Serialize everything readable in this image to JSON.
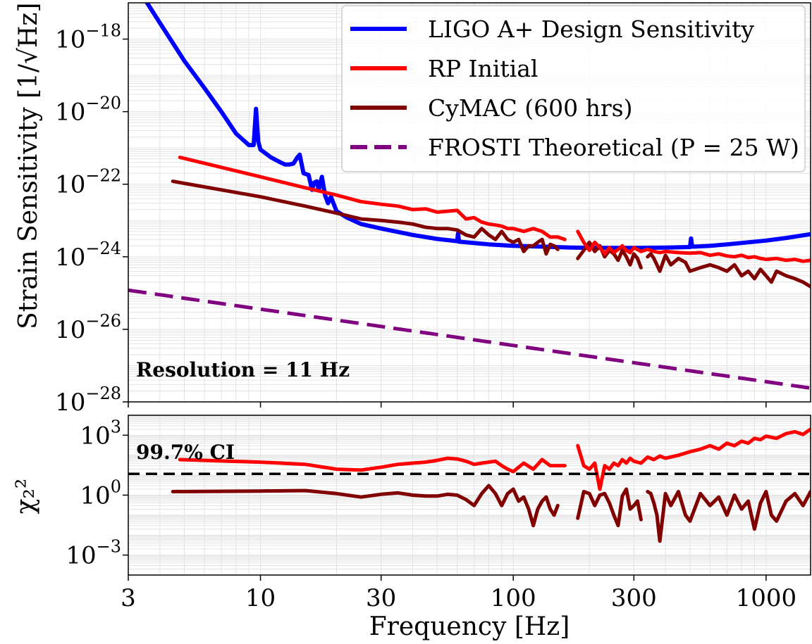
{
  "chart_data": [
    {
      "type": "line",
      "panel": "top",
      "ylabel": "Strain Sensitivity",
      "ylabel_unit": "[1/√Hz]",
      "xscale": "log",
      "yscale": "log",
      "xlim": [
        3,
        1500
      ],
      "ylim": [
        1e-28,
        1e-17
      ],
      "grid": true,
      "legend_placement": "top-right",
      "y_ticks": [
        {
          "value": 1e-18,
          "base": "10",
          "exp": "−18"
        },
        {
          "value": 1e-20,
          "base": "10",
          "exp": "−20"
        },
        {
          "value": 1e-22,
          "base": "10",
          "exp": "−22"
        },
        {
          "value": 1e-24,
          "base": "10",
          "exp": "−24"
        },
        {
          "value": 1e-26,
          "base": "10",
          "exp": "−26"
        },
        {
          "value": 1e-28,
          "base": "10",
          "exp": "−28"
        }
      ],
      "annotation": "Resolution = 11 Hz",
      "series": [
        {
          "name": "LIGO A+ Design Sensitivity",
          "color": "#0000ff",
          "style": "solid",
          "x": [
            3.5,
            4,
            5,
            6,
            7,
            8,
            9,
            9.4,
            9.6,
            9.8,
            10,
            11,
            12,
            12.5,
            13,
            13.5,
            14,
            14.3,
            14.8,
            15.5,
            16,
            16.3,
            16.7,
            17,
            17.5,
            18,
            18.5,
            19,
            20,
            22,
            25,
            30,
            40,
            50,
            60,
            60.5,
            61,
            70,
            80,
            100,
            130,
            170,
            220,
            300,
            400,
            500,
            505,
            510,
            520,
            600,
            700,
            800,
            1000,
            1200,
            1500
          ],
          "y": [
            1.2e-17,
            2.8e-18,
            2.5e-19,
            4.5e-20,
            1e-20,
            2.5e-21,
            1.2e-21,
            1.2e-21,
            1.2e-20,
            1.5e-21,
            9e-22,
            5.5e-22,
            4e-22,
            3.5e-22,
            3.5e-22,
            3.7e-22,
            5.5e-22,
            6.5e-22,
            2e-22,
            1.8e-22,
            7e-23,
            1.1e-22,
            1.2e-22,
            7e-23,
            1.6e-22,
            5e-23,
            3e-23,
            4.5e-23,
            1.8e-23,
            1.2e-23,
            8e-24,
            6e-24,
            4e-24,
            3.1e-24,
            2.7e-24,
            4.5e-24,
            2.6e-24,
            2.4e-24,
            2.2e-24,
            2e-24,
            1.9e-24,
            1.8e-24,
            1.75e-24,
            1.75e-24,
            1.8e-24,
            1.85e-24,
            3.2e-24,
            1.9e-24,
            1.9e-24,
            2e-24,
            2.2e-24,
            2.4e-24,
            2.8e-24,
            3.3e-24,
            4.2e-24
          ]
        },
        {
          "name": "RP Initial",
          "color": "#ff0000",
          "style": "solid",
          "x": [
            4.8,
            10,
            15,
            20,
            25,
            30,
            35,
            40,
            45,
            50,
            55,
            60,
            65,
            70,
            75,
            80,
            85,
            90,
            95,
            100,
            110,
            120,
            130,
            140,
            150,
            160,
            null,
            180,
            190,
            200,
            210,
            220,
            230,
            240,
            250,
            260,
            270,
            280,
            290,
            300,
            320,
            340,
            360,
            380,
            400,
            450,
            500,
            550,
            600,
            650,
            700,
            750,
            800,
            850,
            900,
            950,
            1000,
            1100,
            1200,
            1300,
            1400,
            1500
          ],
          "y": [
            5.5e-22,
            1.6e-22,
            8e-23,
            5e-23,
            3.3e-23,
            2.8e-23,
            2.5e-23,
            2e-23,
            2.1e-23,
            1.7e-23,
            1.8e-23,
            1.9e-23,
            1.1e-23,
            1.2e-23,
            9e-24,
            8e-24,
            7.5e-24,
            7e-24,
            6e-24,
            6e-24,
            5e-24,
            6e-24,
            5e-24,
            3.5e-24,
            3.5e-24,
            3e-24,
            null,
            5e-24,
            2.5e-24,
            1.5e-24,
            2.5e-24,
            1.8e-24,
            1.2e-24,
            1.8e-24,
            1.3e-24,
            1.6e-24,
            2e-24,
            1.5e-24,
            1.3e-24,
            1.8e-24,
            1.4e-24,
            1.6e-24,
            1.4e-24,
            1.3e-24,
            1.4e-24,
            1.3e-24,
            1.25e-24,
            1.3e-24,
            1.1e-24,
            1.2e-24,
            1.05e-24,
            1e-24,
            1.1e-24,
            9.5e-25,
            1e-24,
            9e-25,
            8.5e-25,
            9e-25,
            8e-25,
            8.5e-25,
            7.5e-25,
            8e-25
          ]
        },
        {
          "name": "CyMAC (600 hrs)",
          "color": "#800000",
          "style": "solid",
          "x": [
            4.5,
            10,
            15,
            20,
            25,
            30,
            35,
            40,
            45,
            50,
            55,
            60,
            65,
            70,
            75,
            80,
            85,
            90,
            95,
            100,
            105,
            110,
            115,
            120,
            125,
            130,
            135,
            140,
            145,
            150,
            null,
            180,
            190,
            200,
            210,
            220,
            230,
            240,
            250,
            260,
            270,
            280,
            290,
            300,
            310,
            320,
            null,
            340,
            350,
            360,
            370,
            380,
            400,
            420,
            450,
            480,
            500,
            550,
            600,
            650,
            700,
            750,
            800,
            850,
            900,
            950,
            1000,
            1050,
            1100,
            1200,
            1300,
            1400,
            1500
          ],
          "y": [
            1.2e-22,
            4.5e-23,
            2.5e-23,
            1.6e-23,
            1.1e-23,
            1e-23,
            9e-24,
            8e-24,
            6.5e-24,
            6e-24,
            6e-24,
            5.5e-24,
            4e-24,
            3.5e-24,
            6e-24,
            4e-24,
            3e-24,
            5e-24,
            3e-24,
            2.5e-24,
            3e-24,
            1.4e-24,
            2e-24,
            2e-24,
            2.5e-24,
            3e-24,
            1.2e-24,
            2.2e-24,
            2e-24,
            1.6e-24,
            null,
            9e-25,
            1.5e-24,
            2.5e-24,
            1.4e-24,
            2e-24,
            1e-24,
            1.5e-24,
            1.2e-24,
            8e-25,
            1.5e-24,
            1e-24,
            6e-25,
            1.2e-24,
            9e-25,
            5e-25,
            null,
            1e-24,
            1.2e-24,
            9e-25,
            6e-25,
            4e-25,
            1.1e-24,
            6e-25,
            9e-25,
            7e-25,
            4e-25,
            5e-25,
            6e-25,
            5e-25,
            4e-25,
            6e-25,
            3e-25,
            4e-25,
            2.5e-25,
            4.5e-25,
            3e-25,
            2e-25,
            4e-25,
            3e-25,
            2.5e-25,
            2e-25,
            1.5e-25
          ]
        },
        {
          "name": "FROSTI Theoretical (P = 25 W)",
          "color": "#800080",
          "style": "dashed",
          "x": [
            3,
            1500
          ],
          "y": [
            1.2e-25,
            2.4e-28
          ]
        }
      ]
    },
    {
      "type": "line",
      "panel": "bottom",
      "xlabel": "Frequency [Hz]",
      "ylabel": "χ₂²",
      "xscale": "log",
      "yscale": "log",
      "xlim": [
        3,
        1500
      ],
      "ylim": [
        0.0001,
        10000.0
      ],
      "grid": true,
      "x_ticks": [
        {
          "value": 3,
          "label": "3"
        },
        {
          "value": 10,
          "label": "10"
        },
        {
          "value": 30,
          "label": "30"
        },
        {
          "value": 100,
          "label": "100"
        },
        {
          "value": 300,
          "label": "300"
        },
        {
          "value": 1000,
          "label": "1000"
        }
      ],
      "y_ticks": [
        {
          "value": 1000,
          "base": "10",
          "exp": "3"
        },
        {
          "value": 1,
          "base": "10",
          "exp": "0"
        },
        {
          "value": 0.001,
          "base": "10",
          "exp": "−3"
        }
      ],
      "annotation": "99.7% CI",
      "reference_line": {
        "y": 11.6,
        "color": "#000000",
        "style": "dashed"
      },
      "series": [
        {
          "name": "RP Initial",
          "color": "#ff0000",
          "style": "solid",
          "x": [
            4.8,
            10,
            15,
            20,
            25,
            30,
            35,
            40,
            45,
            50,
            55,
            60,
            65,
            70,
            75,
            80,
            85,
            90,
            95,
            100,
            110,
            120,
            130,
            140,
            150,
            160,
            null,
            180,
            190,
            200,
            210,
            220,
            230,
            240,
            250,
            260,
            270,
            280,
            290,
            300,
            320,
            340,
            360,
            380,
            400,
            450,
            500,
            550,
            600,
            650,
            700,
            750,
            800,
            850,
            900,
            950,
            1000,
            1100,
            1200,
            1300,
            1400,
            1500
          ],
          "y": [
            60,
            45,
            35,
            20,
            18,
            25,
            35,
            40,
            45,
            55,
            70,
            65,
            50,
            35,
            40,
            45,
            50,
            30,
            20,
            15,
            40,
            20,
            60,
            30,
            30,
            30,
            null,
            300,
            30,
            20,
            40,
            2,
            30,
            20,
            40,
            30,
            60,
            40,
            70,
            50,
            40,
            80,
            60,
            90,
            70,
            100,
            150,
            200,
            300,
            200,
            400,
            300,
            500,
            400,
            700,
            600,
            900,
            700,
            1200,
            1500,
            1100,
            2000
          ]
        },
        {
          "name": "CyMAC (600 hrs)",
          "color": "#800000",
          "style": "solid",
          "x": [
            4.5,
            10,
            15,
            20,
            25,
            30,
            35,
            40,
            45,
            50,
            55,
            60,
            65,
            70,
            75,
            80,
            85,
            90,
            95,
            100,
            105,
            110,
            115,
            120,
            125,
            130,
            135,
            140,
            145,
            150,
            null,
            180,
            190,
            200,
            210,
            220,
            230,
            240,
            250,
            260,
            270,
            280,
            290,
            300,
            310,
            320,
            null,
            340,
            350,
            360,
            370,
            380,
            400,
            420,
            450,
            480,
            500,
            550,
            600,
            650,
            700,
            750,
            800,
            850,
            900,
            950,
            1000,
            1050,
            1100,
            1200,
            1300,
            1400,
            1500
          ],
          "y": [
            1.5,
            1.6,
            1.7,
            1.2,
            0.8,
            1.1,
            1.3,
            1.0,
            0.9,
            0.9,
            1.1,
            1.0,
            0.6,
            0.3,
            1.2,
            3,
            1.2,
            0.3,
            1.2,
            2,
            0.5,
            0.8,
            0.2,
            0.03,
            0.2,
            0.5,
            0.8,
            0.2,
            0.1,
            0.3,
            null,
            0.07,
            1.5,
            1.2,
            0.3,
            1.0,
            1.2,
            0.4,
            0.1,
            0.03,
            0.9,
            2,
            0.2,
            0.3,
            0.5,
            0.06,
            null,
            1.5,
            1.2,
            0.4,
            0.1,
            0.005,
            1.2,
            0.3,
            1.5,
            0.1,
            0.05,
            1.2,
            0.3,
            0.8,
            0.1,
            1.0,
            0.2,
            0.5,
            0.02,
            0.4,
            1.5,
            0.1,
            0.05,
            0.5,
            1.2,
            0.3,
            1.5
          ]
        }
      ]
    }
  ],
  "legend": [
    {
      "label": "LIGO A+ Design Sensitivity",
      "color": "#0000ff",
      "style": "solid"
    },
    {
      "label": "RP Initial",
      "color": "#ff0000",
      "style": "solid"
    },
    {
      "label": "CyMAC (600 hrs)",
      "color": "#800000",
      "style": "solid"
    },
    {
      "label": "FROSTI Theoretical (P = 25 W)",
      "color": "#800080",
      "style": "dashed"
    }
  ]
}
